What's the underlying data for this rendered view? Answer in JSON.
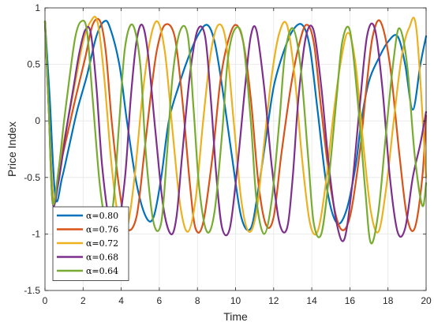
{
  "chart_data": {
    "type": "line",
    "title": "",
    "xlabel": "Time",
    "ylabel": "Price Index",
    "xlim": [
      0,
      20
    ],
    "ylim": [
      -1.5,
      1
    ],
    "xticks": [
      "0",
      "2",
      "4",
      "6",
      "8",
      "10",
      "12",
      "14",
      "16",
      "18",
      "20"
    ],
    "yticks": [
      "-1.5",
      "-1",
      "-0.5",
      "0",
      "0.5",
      "1"
    ],
    "grid": true,
    "legend_position": "bottom-left",
    "series": [
      {
        "name": "α=0.80",
        "color": "#0072BD",
        "x": [
          0,
          0.25,
          0.55,
          0.9,
          1.3,
          1.7,
          2.2,
          2.7,
          3.1,
          3.4,
          3.9,
          4.3,
          4.8,
          5.3,
          5.7,
          6.1,
          6.5,
          7.0,
          7.5,
          8.0,
          8.5,
          8.9,
          9.3,
          9.8,
          10.3,
          10.8,
          11.2,
          11.6,
          12.0,
          12.5,
          13.0,
          13.5,
          13.9,
          14.3,
          14.8,
          15.3,
          15.8,
          16.3,
          16.6,
          17.0,
          17.5,
          18.0,
          18.5,
          18.9,
          19.3,
          19.7,
          20.0
        ],
        "y": [
          0.88,
          0.2,
          -0.68,
          -0.5,
          -0.2,
          0.1,
          0.4,
          0.75,
          0.88,
          0.83,
          0.5,
          0.0,
          -0.55,
          -0.85,
          -0.85,
          -0.5,
          0.0,
          0.3,
          0.55,
          0.75,
          0.85,
          0.7,
          0.3,
          -0.3,
          -0.85,
          -0.95,
          -0.6,
          -0.15,
          0.3,
          0.6,
          0.8,
          0.85,
          0.65,
          0.1,
          -0.6,
          -0.9,
          -0.8,
          -0.4,
          0.0,
          0.35,
          0.55,
          0.7,
          0.75,
          0.5,
          0.1,
          0.5,
          0.75
        ]
      },
      {
        "name": "α=0.76",
        "color": "#D95319",
        "x": [
          0,
          0.2,
          0.45,
          0.8,
          1.2,
          1.6,
          2.1,
          2.5,
          2.9,
          3.2,
          3.5,
          3.9,
          4.3,
          4.8,
          5.2,
          5.6,
          5.9,
          6.3,
          6.8,
          7.2,
          7.6,
          7.9,
          8.3,
          8.8,
          9.2,
          9.6,
          10.0,
          10.4,
          10.8,
          11.2,
          11.6,
          12.0,
          12.4,
          12.9,
          13.3,
          13.7,
          14.1,
          14.5,
          15.0,
          15.5,
          16.0,
          16.5,
          16.9,
          17.2,
          17.6,
          18.1,
          18.6,
          19.0,
          19.4,
          19.8,
          20.0
        ],
        "y": [
          0.88,
          0.1,
          -0.7,
          -0.4,
          -0.1,
          0.2,
          0.55,
          0.85,
          0.88,
          0.6,
          0.0,
          -0.6,
          -0.95,
          -0.85,
          -0.3,
          0.3,
          0.65,
          0.85,
          0.75,
          0.2,
          -0.55,
          -0.95,
          -0.9,
          -0.3,
          0.35,
          0.7,
          0.85,
          0.7,
          0.2,
          -0.55,
          -0.92,
          -0.85,
          -0.3,
          0.3,
          0.65,
          0.85,
          0.7,
          0.1,
          -0.6,
          -0.95,
          -0.85,
          -0.3,
          0.35,
          0.75,
          0.88,
          0.5,
          -0.3,
          -0.85,
          -0.95,
          -0.5,
          0.05
        ]
      },
      {
        "name": "α=0.72",
        "color": "#EDB120",
        "x": [
          0,
          0.2,
          0.45,
          0.8,
          1.2,
          1.6,
          2.0,
          2.4,
          2.75,
          3.1,
          3.5,
          3.9,
          4.3,
          4.7,
          5.1,
          5.5,
          5.9,
          6.3,
          6.7,
          7.1,
          7.5,
          7.9,
          8.3,
          8.7,
          9.1,
          9.5,
          9.9,
          10.3,
          10.7,
          11.1,
          11.5,
          11.9,
          12.3,
          12.7,
          13.1,
          13.5,
          13.9,
          14.3,
          14.7,
          15.1,
          15.5,
          15.9,
          16.3,
          16.7,
          17.1,
          17.5,
          17.9,
          18.3,
          18.7,
          19.1,
          19.5,
          20.0
        ],
        "y": [
          0.88,
          0.1,
          -0.7,
          -0.35,
          0.0,
          0.35,
          0.7,
          0.88,
          0.88,
          0.4,
          -0.4,
          -0.9,
          -0.95,
          -0.5,
          0.2,
          0.7,
          0.88,
          0.6,
          -0.1,
          -0.75,
          -0.98,
          -0.7,
          0.0,
          0.6,
          0.85,
          0.7,
          0.0,
          -0.7,
          -0.98,
          -0.8,
          -0.2,
          0.4,
          0.78,
          0.85,
          0.4,
          -0.35,
          -0.9,
          -0.98,
          -0.6,
          0.0,
          0.5,
          0.78,
          0.5,
          -0.2,
          -0.8,
          -0.98,
          -0.6,
          0.0,
          0.55,
          0.82,
          0.8,
          -0.5
        ]
      },
      {
        "name": "α=0.68",
        "color": "#7E2F8E",
        "x": [
          0,
          0.2,
          0.4,
          0.7,
          1.1,
          1.5,
          1.8,
          2.1,
          2.4,
          2.7,
          3.0,
          3.4,
          3.8,
          4.2,
          4.5,
          4.8,
          5.1,
          5.4,
          5.8,
          6.2,
          6.6,
          6.9,
          7.2,
          7.6,
          8.0,
          8.4,
          8.7,
          9.0,
          9.3,
          9.7,
          10.1,
          10.5,
          10.8,
          11.1,
          11.5,
          11.9,
          12.3,
          12.7,
          13.0,
          13.3,
          13.7,
          14.1,
          14.5,
          14.9,
          15.3,
          15.7,
          16.1,
          16.5,
          16.9,
          17.3,
          17.7,
          18.1,
          18.5,
          18.9,
          19.3,
          19.7,
          20.0
        ],
        "y": [
          0.88,
          0.1,
          -0.72,
          -0.55,
          -0.1,
          0.3,
          0.6,
          0.8,
          0.78,
          0.3,
          -0.4,
          -0.9,
          -0.95,
          -0.5,
          0.2,
          0.7,
          0.85,
          0.6,
          -0.1,
          -0.75,
          -1.0,
          -0.85,
          -0.3,
          0.4,
          0.8,
          0.75,
          0.2,
          -0.5,
          -0.95,
          -0.95,
          -0.4,
          0.3,
          0.75,
          0.8,
          0.3,
          -0.4,
          -0.9,
          -0.95,
          -0.5,
          0.2,
          0.75,
          0.8,
          0.3,
          -0.4,
          -0.9,
          -1.05,
          -0.6,
          0.1,
          0.75,
          0.82,
          0.3,
          -0.5,
          -0.98,
          -0.95,
          -0.5,
          -0.2,
          0.08
        ]
      },
      {
        "name": "α=0.64",
        "color": "#77AC30",
        "x": [
          0,
          0.2,
          0.4,
          0.7,
          1.0,
          1.3,
          1.6,
          1.9,
          2.2,
          2.5,
          2.9,
          3.3,
          3.6,
          3.9,
          4.2,
          4.6,
          5.0,
          5.3,
          5.7,
          6.1,
          6.4,
          6.7,
          7.1,
          7.5,
          7.8,
          8.1,
          8.5,
          8.9,
          9.3,
          9.6,
          10.0,
          10.4,
          10.8,
          11.1,
          11.5,
          11.9,
          12.3,
          12.6,
          13.0,
          13.4,
          13.8,
          14.1,
          14.5,
          14.9,
          15.3,
          15.6,
          16.0,
          16.4,
          16.8,
          17.1,
          17.5,
          17.9,
          18.3,
          18.6,
          19.0,
          19.4,
          19.8,
          20.0
        ],
        "y": [
          0.88,
          0.1,
          -0.72,
          -0.45,
          0.0,
          0.4,
          0.75,
          0.88,
          0.8,
          0.2,
          -0.6,
          -0.95,
          -0.7,
          0.0,
          0.65,
          0.85,
          0.5,
          -0.3,
          -0.9,
          -0.9,
          -0.3,
          0.4,
          0.8,
          0.75,
          0.1,
          -0.6,
          -0.98,
          -0.8,
          -0.1,
          0.55,
          0.82,
          0.7,
          0.0,
          -0.7,
          -1.0,
          -0.7,
          0.0,
          0.6,
          0.82,
          0.5,
          -0.3,
          -0.9,
          -1.0,
          -0.5,
          0.2,
          0.7,
          0.8,
          0.2,
          -0.6,
          -1.08,
          -0.8,
          -0.1,
          0.55,
          0.82,
          0.5,
          -0.3,
          -0.75,
          -0.55
        ]
      }
    ]
  }
}
